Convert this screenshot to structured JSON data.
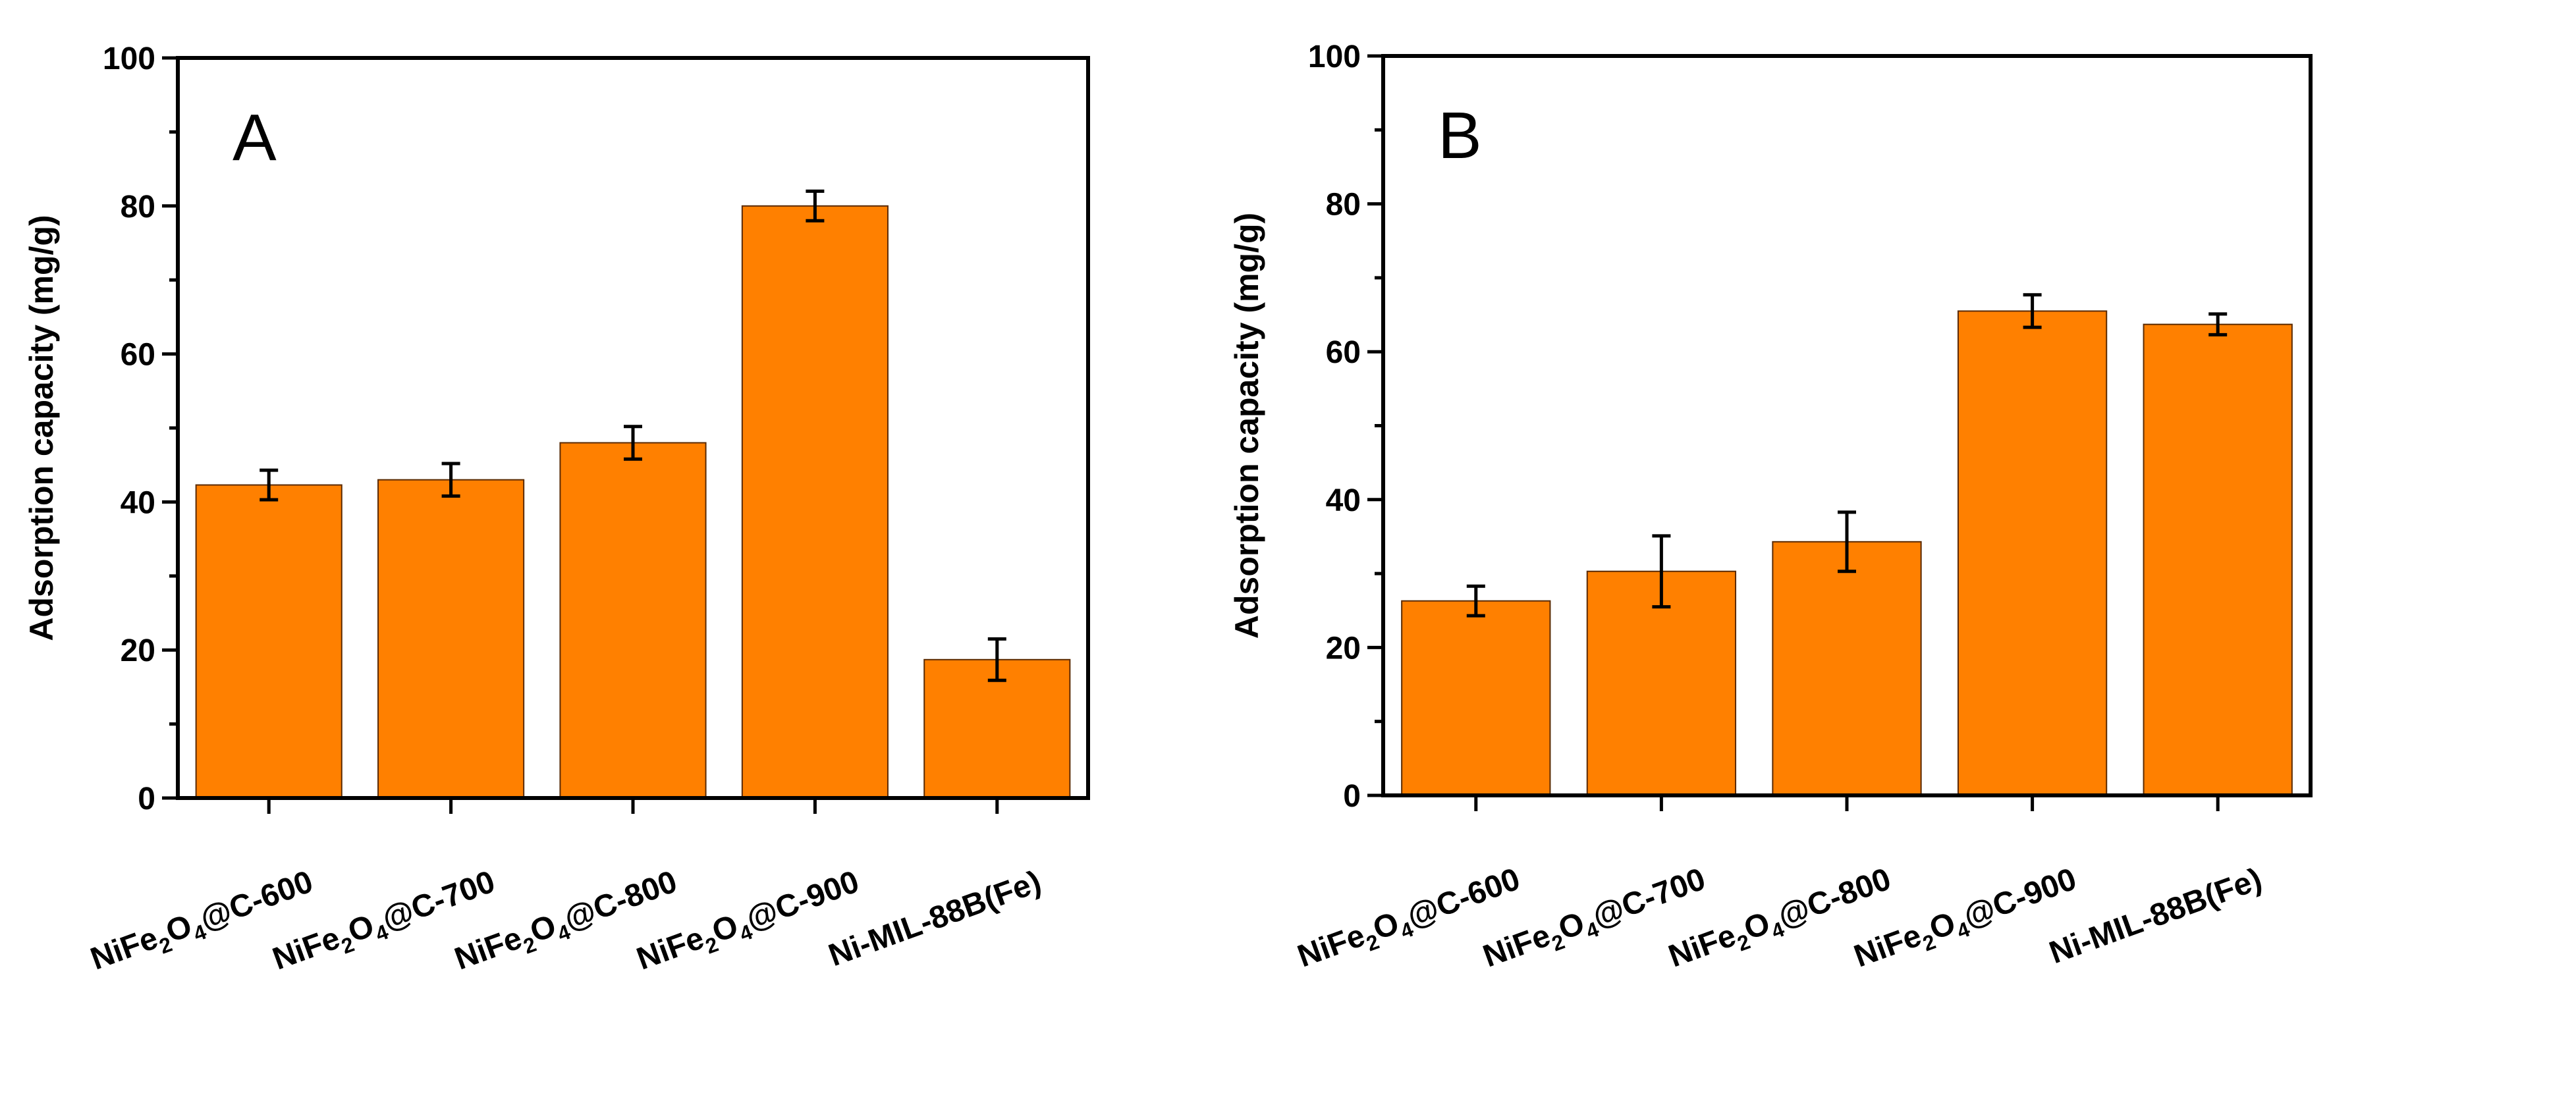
{
  "chart_data": [
    {
      "type": "bar",
      "panel_label": "A",
      "ylabel": "Adsorption capacity (mg/g)",
      "xlabel": "",
      "ylim": [
        0,
        100
      ],
      "yticks": [
        "0",
        "20",
        "40",
        "60",
        "80",
        "100"
      ],
      "categories": [
        [
          "NiFe",
          "2",
          "O",
          "4",
          "@C-600"
        ],
        [
          "NiFe",
          "2",
          "O",
          "4",
          "@C-700"
        ],
        [
          "NiFe",
          "2",
          "O",
          "4",
          "@C-800"
        ],
        [
          "NiFe",
          "2",
          "O",
          "4",
          "@C-900"
        ],
        [
          "Ni-MIL-88B(Fe)"
        ]
      ],
      "values": [
        42.3,
        43.0,
        48.0,
        80.0,
        18.7
      ],
      "errors": [
        2.0,
        2.2,
        2.2,
        2.0,
        2.8
      ],
      "bar_color": "#ff8000"
    },
    {
      "type": "bar",
      "panel_label": "B",
      "ylabel": "Adsorption capacity (mg/g)",
      "xlabel": "",
      "ylim": [
        0,
        100
      ],
      "yticks": [
        "0",
        "20",
        "40",
        "60",
        "80",
        "100"
      ],
      "categories": [
        [
          "NiFe",
          "2",
          "O",
          "4",
          "@C-600"
        ],
        [
          "NiFe",
          "2",
          "O",
          "4",
          "@C-700"
        ],
        [
          "NiFe",
          "2",
          "O",
          "4",
          "@C-800"
        ],
        [
          "NiFe",
          "2",
          "O",
          "4",
          "@C-900"
        ],
        [
          "Ni-MIL-88B(Fe)"
        ]
      ],
      "values": [
        26.3,
        30.3,
        34.3,
        65.5,
        63.7
      ],
      "errors": [
        2.0,
        4.8,
        4.0,
        2.2,
        1.4
      ],
      "bar_color": "#ff8000"
    }
  ]
}
